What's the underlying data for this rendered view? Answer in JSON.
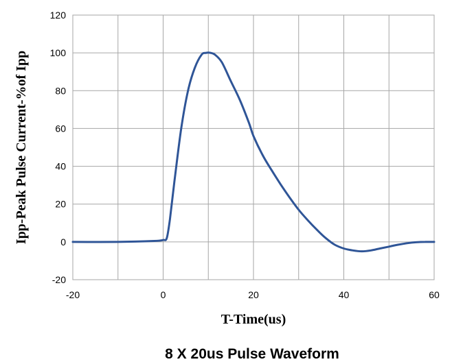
{
  "chart_data": {
    "type": "line",
    "title": "",
    "caption": "8 X 20us Pulse Waveform",
    "xlabel": "T-Time(us)",
    "ylabel": "Ipp-Peak Pulse Current-%of Ipp",
    "xlim": [
      -20,
      60
    ],
    "ylim": [
      -20,
      120
    ],
    "xticks": [
      -20,
      0,
      20,
      40,
      60
    ],
    "yticks": [
      -20,
      0,
      20,
      40,
      60,
      80,
      100,
      120
    ],
    "x_gridlines": [
      -20,
      -10,
      0,
      10,
      20,
      30,
      40,
      50,
      60
    ],
    "grid": true,
    "legend": "none",
    "line_color": "#2f5597",
    "series": [
      {
        "x": [
          -20,
          -10,
          -2,
          0,
          0.8,
          1.5,
          2.5,
          4,
          5.5,
          7,
          8.5,
          9.5,
          10.5,
          11.5,
          13,
          15,
          17,
          19,
          20,
          22,
          24,
          26,
          28,
          30,
          32,
          34,
          36,
          38,
          40,
          42,
          44,
          46,
          48,
          50,
          52,
          54,
          56,
          58,
          60
        ],
        "y": [
          0,
          0,
          0.5,
          1,
          2,
          12,
          32,
          60,
          80,
          92,
          99,
          100,
          100,
          99,
          95,
          85,
          75,
          63,
          56,
          46,
          38,
          30.5,
          23.5,
          17,
          11.5,
          6.5,
          2,
          -1.5,
          -3.5,
          -4.5,
          -5,
          -4.5,
          -3.5,
          -2.5,
          -1.5,
          -0.7,
          -0.2,
          0,
          0
        ]
      }
    ]
  }
}
